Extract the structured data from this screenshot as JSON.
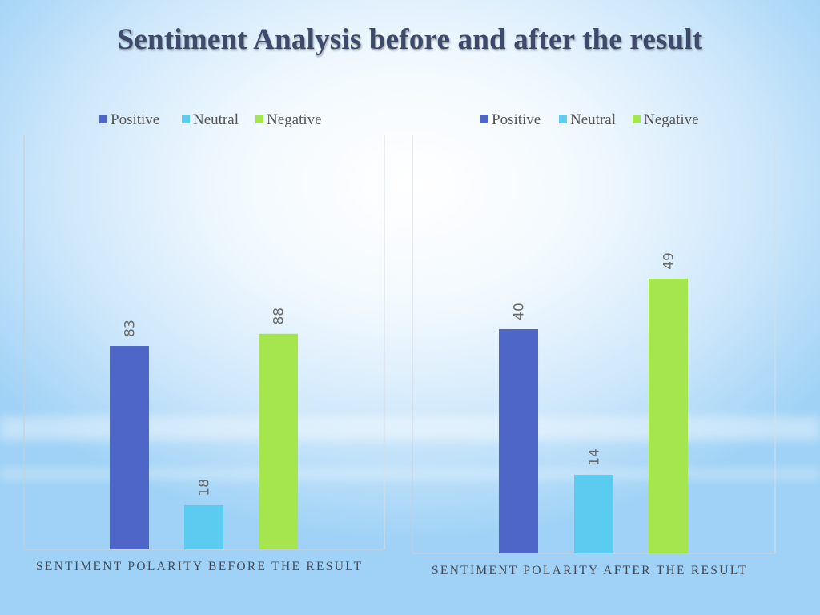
{
  "slide": {
    "title": "Sentiment Analysis before and after the result"
  },
  "colors": {
    "positive": "#4E66C8",
    "neutral": "#5BCBF0",
    "negative": "#A5E64E",
    "title": "#3d4a6b"
  },
  "chart_data": [
    {
      "type": "bar",
      "categories": [
        "Positive",
        "Neutral",
        "Negative"
      ],
      "values": [
        83,
        18,
        88
      ],
      "data_labels": [
        "83",
        "18",
        "88"
      ],
      "legend": [
        "Positive",
        "Neutral",
        "Negative"
      ],
      "legend_position": "top",
      "xlabel": "SENTIMENT POLARITY BEFORE THE RESULT",
      "ylabel": "",
      "ylim": [
        0,
        100
      ],
      "grid": false
    },
    {
      "type": "bar",
      "categories": [
        "Positive",
        "Neutral",
        "Negative"
      ],
      "values": [
        40,
        14,
        49
      ],
      "data_labels": [
        "40",
        "14",
        "49"
      ],
      "legend": [
        "Positive",
        "Neutral",
        "Negative"
      ],
      "legend_position": "top",
      "xlabel": "SENTIMENT POLARITY AFTER THE RESULT",
      "ylabel": "",
      "ylim": [
        0,
        60
      ],
      "grid": false
    }
  ]
}
